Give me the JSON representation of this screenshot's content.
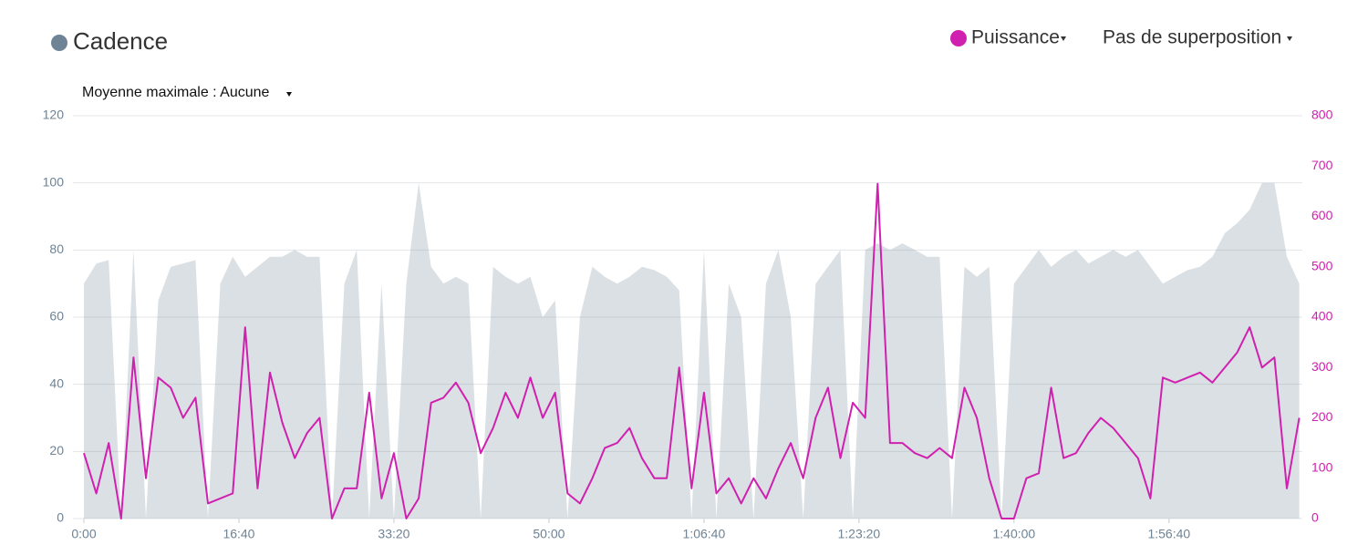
{
  "chart_data": {
    "type": "line",
    "max_average_menu": "Moyenne maximale : Aucune",
    "overlay_menu": "Pas de superposition",
    "x": [
      0,
      80,
      160,
      240,
      320,
      400,
      480,
      560,
      640,
      720,
      800,
      880,
      960,
      1040,
      1120,
      1200,
      1280,
      1360,
      1440,
      1520,
      1600,
      1680,
      1760,
      1840,
      1920,
      2000,
      2080,
      2160,
      2240,
      2320,
      2400,
      2480,
      2560,
      2640,
      2720,
      2800,
      2880,
      2960,
      3040,
      3120,
      3200,
      3280,
      3360,
      3440,
      3520,
      3600,
      3680,
      3760,
      3840,
      3920,
      4000,
      4080,
      4160,
      4240,
      4320,
      4400,
      4480,
      4560,
      4640,
      4720,
      4800,
      4880,
      4960,
      5040,
      5120,
      5200,
      5280,
      5360,
      5440,
      5520,
      5600,
      5680,
      5760,
      5840,
      5920,
      6000,
      6080,
      6160,
      6240,
      6320,
      6400,
      6480,
      6560,
      6640,
      6720,
      6800,
      6880,
      6960,
      7040,
      7120,
      7200,
      7280,
      7360,
      7440,
      7520,
      7600,
      7680,
      7760,
      7840
    ],
    "xlim": [
      0,
      7860
    ],
    "xticks": [
      {
        "value": 0,
        "label": "0:00"
      },
      {
        "value": 1000,
        "label": "16:40"
      },
      {
        "value": 2000,
        "label": "33:20"
      },
      {
        "value": 3000,
        "label": "50:00"
      },
      {
        "value": 4000,
        "label": "1:06:40"
      },
      {
        "value": 5000,
        "label": "1:23:20"
      },
      {
        "value": 6000,
        "label": "1:40:00"
      },
      {
        "value": 7000,
        "label": "1:56:40"
      }
    ],
    "ylim": [
      0,
      120
    ],
    "yticks": [
      0,
      20,
      40,
      60,
      80,
      100,
      120
    ],
    "y2lim": [
      0,
      800
    ],
    "y2ticks": [
      0,
      100,
      200,
      300,
      400,
      500,
      600,
      700,
      800
    ],
    "grid": true,
    "series": [
      {
        "name": "Cadence",
        "color": "#6e8395",
        "axis": "y",
        "values": [
          70,
          76,
          77,
          0,
          80,
          0,
          65,
          75,
          76,
          77,
          0,
          70,
          78,
          72,
          75,
          78,
          78,
          80,
          78,
          78,
          0,
          70,
          80,
          0,
          70,
          0,
          70,
          100,
          75,
          70,
          72,
          70,
          0,
          75,
          72,
          70,
          72,
          60,
          65,
          0,
          60,
          75,
          72,
          70,
          72,
          75,
          74,
          72,
          68,
          0,
          80,
          0,
          70,
          60,
          0,
          70,
          80,
          60,
          0,
          70,
          75,
          80,
          0,
          80,
          82,
          80,
          82,
          80,
          78,
          78,
          0,
          75,
          72,
          75,
          0,
          70,
          75,
          80,
          75,
          78,
          80,
          76,
          78,
          80,
          78,
          80,
          75,
          70,
          72,
          74,
          75,
          78,
          85,
          88,
          92,
          100,
          100,
          78,
          70
        ]
      },
      {
        "name": "Puissance",
        "color": "#d020b0",
        "axis": "y2",
        "values": [
          130,
          50,
          150,
          0,
          320,
          80,
          280,
          260,
          200,
          240,
          30,
          40,
          50,
          380,
          60,
          290,
          190,
          120,
          170,
          200,
          0,
          60,
          60,
          250,
          40,
          130,
          0,
          40,
          230,
          240,
          270,
          230,
          130,
          180,
          250,
          200,
          280,
          200,
          250,
          50,
          30,
          80,
          140,
          150,
          180,
          120,
          80,
          80,
          300,
          60,
          250,
          50,
          80,
          30,
          80,
          40,
          100,
          150,
          80,
          200,
          260,
          120,
          230,
          200,
          665,
          150,
          150,
          130,
          120,
          140,
          120,
          260,
          200,
          80,
          0,
          0,
          80,
          90,
          260,
          120,
          130,
          170,
          200,
          180,
          150,
          120,
          40,
          280,
          270,
          280,
          290,
          270,
          300,
          330,
          380,
          300,
          320,
          60,
          200
        ]
      }
    ]
  }
}
